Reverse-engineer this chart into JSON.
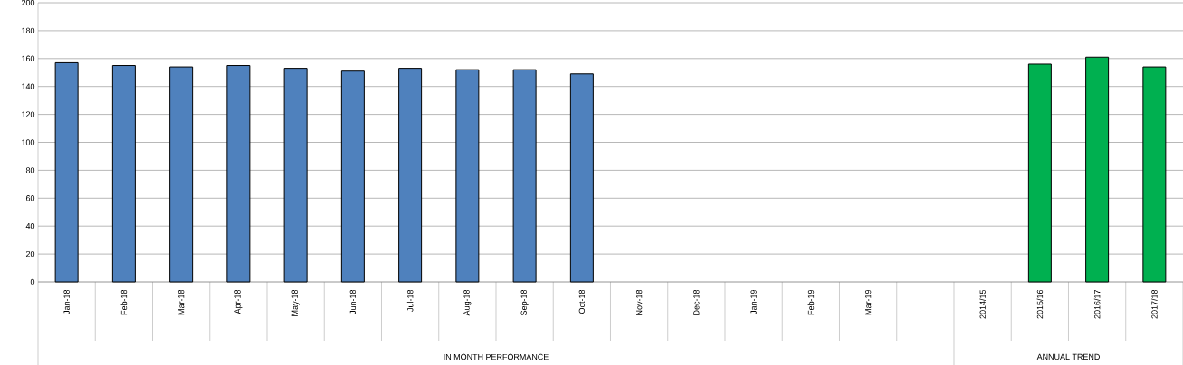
{
  "chart_data": {
    "type": "bar",
    "categories": [
      "Jan-18",
      "Feb-18",
      "Mar-18",
      "Apr-18",
      "May-18",
      "Jun-18",
      "Jul-18",
      "Aug-18",
      "Sep-18",
      "Oct-18",
      "Nov-18",
      "Dec-18",
      "Jan-19",
      "Feb-19",
      "Mar-19",
      null,
      "2014/15",
      "2015/16",
      "2016/17",
      "2017/18"
    ],
    "values": [
      157,
      155,
      154,
      155,
      153,
      151,
      153,
      152,
      152,
      149,
      null,
      null,
      null,
      null,
      null,
      null,
      null,
      156,
      161,
      154
    ],
    "colors": [
      "#4f81bd",
      "#4f81bd",
      "#4f81bd",
      "#4f81bd",
      "#4f81bd",
      "#4f81bd",
      "#4f81bd",
      "#4f81bd",
      "#4f81bd",
      "#4f81bd",
      "#4f81bd",
      "#4f81bd",
      "#4f81bd",
      "#4f81bd",
      "#4f81bd",
      "#4f81bd",
      "#00b050",
      "#00b050",
      "#00b050",
      "#00b050"
    ],
    "ylim": [
      0,
      200
    ],
    "yticks": [
      0,
      20,
      40,
      60,
      80,
      100,
      120,
      140,
      160,
      180,
      200
    ],
    "grid": "y",
    "annotations": [
      "IN MONTH PERFORMANCE",
      "ANNUAL TREND"
    ]
  }
}
